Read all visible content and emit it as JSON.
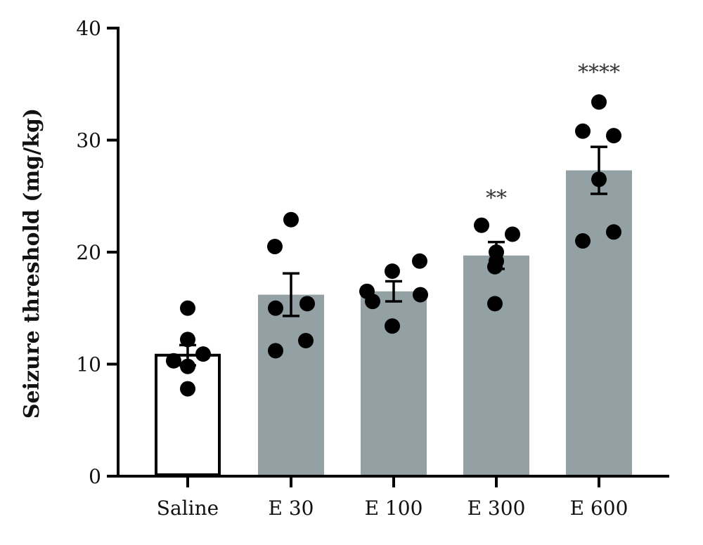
{
  "chart_data": {
    "type": "bar",
    "ylabel": "Seizure threshold (mg/kg)",
    "xlabel": "",
    "ylim": [
      0,
      40
    ],
    "yticks": [
      "0",
      "10",
      "20",
      "30",
      "40"
    ],
    "categories": [
      "Saline",
      "E 30",
      "E 100",
      "E 300",
      "E 600"
    ],
    "values": [
      10.8,
      16.2,
      16.5,
      19.7,
      27.3
    ],
    "sem": [
      0.9,
      1.9,
      0.9,
      1.2,
      2.1
    ],
    "significance": [
      "",
      "",
      "",
      "**",
      "****"
    ],
    "points": [
      [
        15.0,
        12.2,
        10.3,
        10.9,
        9.8,
        7.8
      ],
      [
        22.9,
        20.5,
        15.0,
        15.4,
        11.2,
        12.1
      ],
      [
        16.5,
        18.3,
        19.2,
        15.6,
        16.2,
        13.4
      ],
      [
        22.4,
        21.6,
        20.0,
        18.7,
        15.4,
        19.2
      ],
      [
        33.4,
        30.8,
        30.4,
        26.5,
        21.0,
        21.8
      ]
    ],
    "colors": {
      "saline_fill": "#ffffff",
      "treatment_fill": "#93a1a5",
      "points": "#000000",
      "axis": "#000000"
    },
    "grid": false,
    "legend": "none"
  }
}
